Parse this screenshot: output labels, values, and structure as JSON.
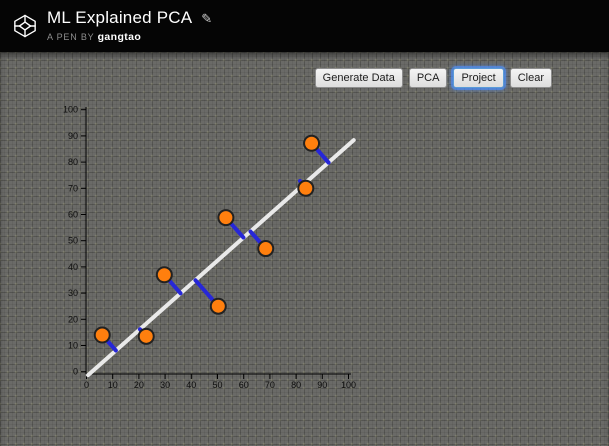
{
  "header": {
    "logo_icon": "codepen-cube",
    "title": "ML Explained PCA",
    "edit_icon": "✎",
    "byline_prefix": "A PEN BY",
    "author": "gangtao"
  },
  "toolbar": {
    "buttons": [
      {
        "label": "Generate Data",
        "focused": false
      },
      {
        "label": "PCA",
        "focused": false
      },
      {
        "label": "Project",
        "focused": true
      },
      {
        "label": "Clear",
        "focused": false
      }
    ]
  },
  "chart_data": {
    "type": "scatter",
    "title": "",
    "xlabel": "",
    "ylabel": "",
    "xlim": [
      0,
      100
    ],
    "ylim": [
      0,
      100
    ],
    "xticks": [
      0,
      10,
      20,
      30,
      40,
      50,
      60,
      70,
      80,
      90,
      100
    ],
    "yticks": [
      0,
      10,
      20,
      30,
      40,
      50,
      60,
      70,
      80,
      90,
      100
    ],
    "grid": false,
    "legend": null,
    "points": [
      {
        "x": 6.0,
        "y": 14.0
      },
      {
        "x": 22.8,
        "y": 13.5
      },
      {
        "x": 29.7,
        "y": 37.0
      },
      {
        "x": 50.3,
        "y": 25.0
      },
      {
        "x": 53.2,
        "y": 58.8
      },
      {
        "x": 68.4,
        "y": 47.0
      },
      {
        "x": 83.7,
        "y": 70.0
      },
      {
        "x": 85.9,
        "y": 87.2
      }
    ],
    "projected_points": [
      {
        "x": 11.2,
        "y": 8.1
      },
      {
        "x": 20.4,
        "y": 16.2
      },
      {
        "x": 35.9,
        "y": 29.9
      },
      {
        "x": 41.6,
        "y": 34.9
      },
      {
        "x": 59.9,
        "y": 51.2
      },
      {
        "x": 62.6,
        "y": 53.5
      },
      {
        "x": 81.5,
        "y": 72.8
      },
      {
        "x": 92.4,
        "y": 79.8
      }
    ],
    "principal_line": {
      "x1": 0.6,
      "y1": -1.3,
      "x2": 102.0,
      "y2": 88.4
    },
    "colors": {
      "point_fill": "#ff7f0e",
      "point_stroke": "#222222",
      "projection_line": "#2727d8",
      "principal_line": "#e9e9e9",
      "axis": "#000000",
      "tick_label": "#0d0d0d"
    }
  }
}
